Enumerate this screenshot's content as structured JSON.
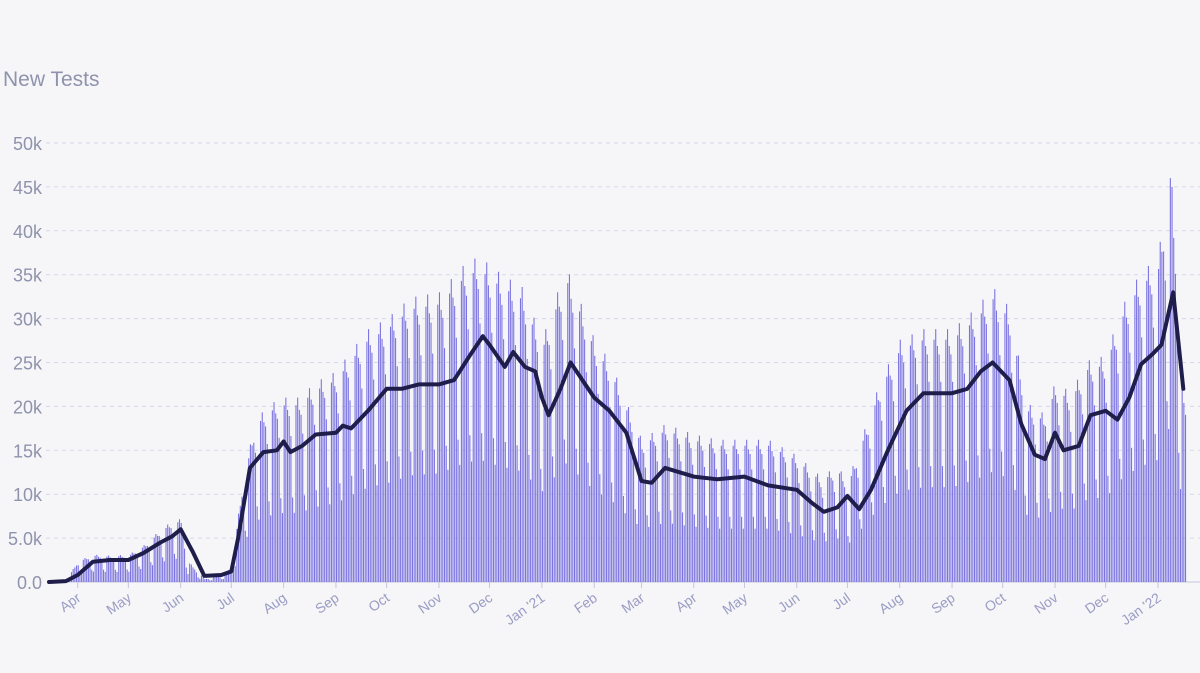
{
  "chart_data": {
    "type": "bar",
    "title": "New Tests",
    "xlabel": "",
    "ylabel": "",
    "ylim": [
      0,
      50000
    ],
    "grid": true,
    "bar_color": "#7b73e0",
    "line_color": "#1f1d4a",
    "y_ticks": [
      {
        "value": 0,
        "label": "0.0"
      },
      {
        "value": 5000,
        "label": "5.0k"
      },
      {
        "value": 10000,
        "label": "10k"
      },
      {
        "value": 15000,
        "label": "15k"
      },
      {
        "value": 20000,
        "label": "20k"
      },
      {
        "value": 25000,
        "label": "25k"
      },
      {
        "value": 30000,
        "label": "30k"
      },
      {
        "value": 35000,
        "label": "35k"
      },
      {
        "value": 40000,
        "label": "40k"
      },
      {
        "value": 45000,
        "label": "45k"
      },
      {
        "value": 50000,
        "label": "50k"
      }
    ],
    "x_range": [
      "2020-03-15",
      "2022-01-17"
    ],
    "x_ticks": [
      {
        "date": "2020-04-01",
        "label": "Apr"
      },
      {
        "date": "2020-05-01",
        "label": "May"
      },
      {
        "date": "2020-06-01",
        "label": "Jun"
      },
      {
        "date": "2020-07-01",
        "label": "Jul"
      },
      {
        "date": "2020-08-01",
        "label": "Aug"
      },
      {
        "date": "2020-09-01",
        "label": "Sep"
      },
      {
        "date": "2020-10-01",
        "label": "Oct"
      },
      {
        "date": "2020-11-01",
        "label": "Nov"
      },
      {
        "date": "2020-12-01",
        "label": "Dec"
      },
      {
        "date": "2021-01-01",
        "label": "Jan '21"
      },
      {
        "date": "2021-02-01",
        "label": "Feb"
      },
      {
        "date": "2021-03-01",
        "label": "Mar"
      },
      {
        "date": "2021-04-01",
        "label": "Apr"
      },
      {
        "date": "2021-05-01",
        "label": "May"
      },
      {
        "date": "2021-06-01",
        "label": "Jun"
      },
      {
        "date": "2021-07-01",
        "label": "Jul"
      },
      {
        "date": "2021-08-01",
        "label": "Aug"
      },
      {
        "date": "2021-09-01",
        "label": "Sep"
      },
      {
        "date": "2021-10-01",
        "label": "Oct"
      },
      {
        "date": "2021-11-01",
        "label": "Nov"
      },
      {
        "date": "2021-12-01",
        "label": "Dec"
      },
      {
        "date": "2022-01-01",
        "label": "Jan '22"
      }
    ],
    "series": [
      {
        "kind": "bar",
        "note": "daily values; weekly pattern with weekend dips",
        "points": [
          [
            "2020-03-15",
            0
          ],
          [
            "2020-03-25",
            200
          ],
          [
            "2020-04-01",
            2000
          ],
          [
            "2020-04-10",
            2600
          ],
          [
            "2020-04-20",
            2500
          ],
          [
            "2020-05-01",
            2600
          ],
          [
            "2020-05-10",
            3500
          ],
          [
            "2020-05-20",
            5000
          ],
          [
            "2020-05-27",
            5800
          ],
          [
            "2020-06-01",
            6000
          ],
          [
            "2020-06-05",
            2000
          ],
          [
            "2020-06-15",
            300
          ],
          [
            "2020-06-25",
            600
          ],
          [
            "2020-07-01",
            1500
          ],
          [
            "2020-07-07",
            9000
          ],
          [
            "2020-07-15",
            15500
          ],
          [
            "2020-07-25",
            17000
          ],
          [
            "2020-08-01",
            17500
          ],
          [
            "2020-08-10",
            17500
          ],
          [
            "2020-08-20",
            19000
          ],
          [
            "2020-09-01",
            20000
          ],
          [
            "2020-09-10",
            22000
          ],
          [
            "2020-09-20",
            24000
          ],
          [
            "2020-10-01",
            25000
          ],
          [
            "2020-10-15",
            27000
          ],
          [
            "2020-11-01",
            27500
          ],
          [
            "2020-11-15",
            30000
          ],
          [
            "2020-11-25",
            31000
          ],
          [
            "2020-12-01",
            30000
          ],
          [
            "2020-12-10",
            29000
          ],
          [
            "2020-12-20",
            28000
          ],
          [
            "2021-01-01",
            23000
          ],
          [
            "2021-01-07",
            26000
          ],
          [
            "2021-01-15",
            30000
          ],
          [
            "2021-01-25",
            26000
          ],
          [
            "2021-02-01",
            23000
          ],
          [
            "2021-02-10",
            21000
          ],
          [
            "2021-02-20",
            17000
          ],
          [
            "2021-03-01",
            13500
          ],
          [
            "2021-03-15",
            15000
          ],
          [
            "2021-04-01",
            14000
          ],
          [
            "2021-04-15",
            13500
          ],
          [
            "2021-05-01",
            13500
          ],
          [
            "2021-05-15",
            13500
          ],
          [
            "2021-06-01",
            12000
          ],
          [
            "2021-06-15",
            10000
          ],
          [
            "2021-06-25",
            11000
          ],
          [
            "2021-07-01",
            9500
          ],
          [
            "2021-07-10",
            14000
          ],
          [
            "2021-07-20",
            19000
          ],
          [
            "2021-08-01",
            23000
          ],
          [
            "2021-08-15",
            24000
          ],
          [
            "2021-09-01",
            24000
          ],
          [
            "2021-09-15",
            26000
          ],
          [
            "2021-09-25",
            28000
          ],
          [
            "2021-10-05",
            26000
          ],
          [
            "2021-10-15",
            17000
          ],
          [
            "2021-10-25",
            16000
          ],
          [
            "2021-11-01",
            19000
          ],
          [
            "2021-11-10",
            18000
          ],
          [
            "2021-11-20",
            21000
          ],
          [
            "2021-12-01",
            21500
          ],
          [
            "2021-12-10",
            26000
          ],
          [
            "2021-12-20",
            29000
          ],
          [
            "2022-01-01",
            31000
          ],
          [
            "2022-01-08",
            40000
          ],
          [
            "2022-01-12",
            30000
          ],
          [
            "2022-01-16",
            17000
          ]
        ]
      },
      {
        "kind": "line",
        "note": "7-day rolling average",
        "points": [
          [
            "2020-03-15",
            0
          ],
          [
            "2020-03-25",
            100
          ],
          [
            "2020-04-01",
            800
          ],
          [
            "2020-04-10",
            2300
          ],
          [
            "2020-04-20",
            2500
          ],
          [
            "2020-05-01",
            2500
          ],
          [
            "2020-05-10",
            3300
          ],
          [
            "2020-05-20",
            4500
          ],
          [
            "2020-05-27",
            5200
          ],
          [
            "2020-06-01",
            6000
          ],
          [
            "2020-06-08",
            3500
          ],
          [
            "2020-06-15",
            700
          ],
          [
            "2020-06-25",
            800
          ],
          [
            "2020-07-01",
            1200
          ],
          [
            "2020-07-05",
            5000
          ],
          [
            "2020-07-12",
            13000
          ],
          [
            "2020-07-20",
            14800
          ],
          [
            "2020-07-28",
            15000
          ],
          [
            "2020-08-01",
            16000
          ],
          [
            "2020-08-05",
            14800
          ],
          [
            "2020-08-12",
            15500
          ],
          [
            "2020-08-20",
            16800
          ],
          [
            "2020-09-01",
            17000
          ],
          [
            "2020-09-05",
            17800
          ],
          [
            "2020-09-10",
            17500
          ],
          [
            "2020-09-20",
            19500
          ],
          [
            "2020-10-01",
            22000
          ],
          [
            "2020-10-10",
            22000
          ],
          [
            "2020-10-20",
            22500
          ],
          [
            "2020-11-01",
            22500
          ],
          [
            "2020-11-10",
            23000
          ],
          [
            "2020-11-20",
            26000
          ],
          [
            "2020-11-27",
            28000
          ],
          [
            "2020-12-01",
            27000
          ],
          [
            "2020-12-10",
            24500
          ],
          [
            "2020-12-15",
            26200
          ],
          [
            "2020-12-22",
            24500
          ],
          [
            "2020-12-28",
            24000
          ],
          [
            "2021-01-01",
            21000
          ],
          [
            "2021-01-05",
            19000
          ],
          [
            "2021-01-12",
            22000
          ],
          [
            "2021-01-18",
            25000
          ],
          [
            "2021-01-25",
            23000
          ],
          [
            "2021-02-01",
            21000
          ],
          [
            "2021-02-10",
            19500
          ],
          [
            "2021-02-20",
            17000
          ],
          [
            "2021-03-01",
            11500
          ],
          [
            "2021-03-07",
            11300
          ],
          [
            "2021-03-15",
            13000
          ],
          [
            "2021-04-01",
            12000
          ],
          [
            "2021-04-15",
            11700
          ],
          [
            "2021-05-01",
            12000
          ],
          [
            "2021-05-15",
            11000
          ],
          [
            "2021-06-01",
            10500
          ],
          [
            "2021-06-10",
            9000
          ],
          [
            "2021-06-17",
            8000
          ],
          [
            "2021-06-25",
            8500
          ],
          [
            "2021-07-01",
            9800
          ],
          [
            "2021-07-08",
            8300
          ],
          [
            "2021-07-15",
            10500
          ],
          [
            "2021-07-25",
            15000
          ],
          [
            "2021-08-05",
            19500
          ],
          [
            "2021-08-15",
            21500
          ],
          [
            "2021-09-01",
            21500
          ],
          [
            "2021-09-10",
            22000
          ],
          [
            "2021-09-18",
            24000
          ],
          [
            "2021-09-25",
            25000
          ],
          [
            "2021-10-05",
            23000
          ],
          [
            "2021-10-12",
            18000
          ],
          [
            "2021-10-20",
            14500
          ],
          [
            "2021-10-26",
            14000
          ],
          [
            "2021-11-01",
            17000
          ],
          [
            "2021-11-06",
            15000
          ],
          [
            "2021-11-15",
            15500
          ],
          [
            "2021-11-22",
            19000
          ],
          [
            "2021-12-01",
            19500
          ],
          [
            "2021-12-08",
            18500
          ],
          [
            "2021-12-15",
            21000
          ],
          [
            "2021-12-22",
            24800
          ],
          [
            "2021-12-29",
            26000
          ],
          [
            "2022-01-03",
            27000
          ],
          [
            "2022-01-10",
            33000
          ],
          [
            "2022-01-16",
            22000
          ]
        ]
      }
    ]
  }
}
